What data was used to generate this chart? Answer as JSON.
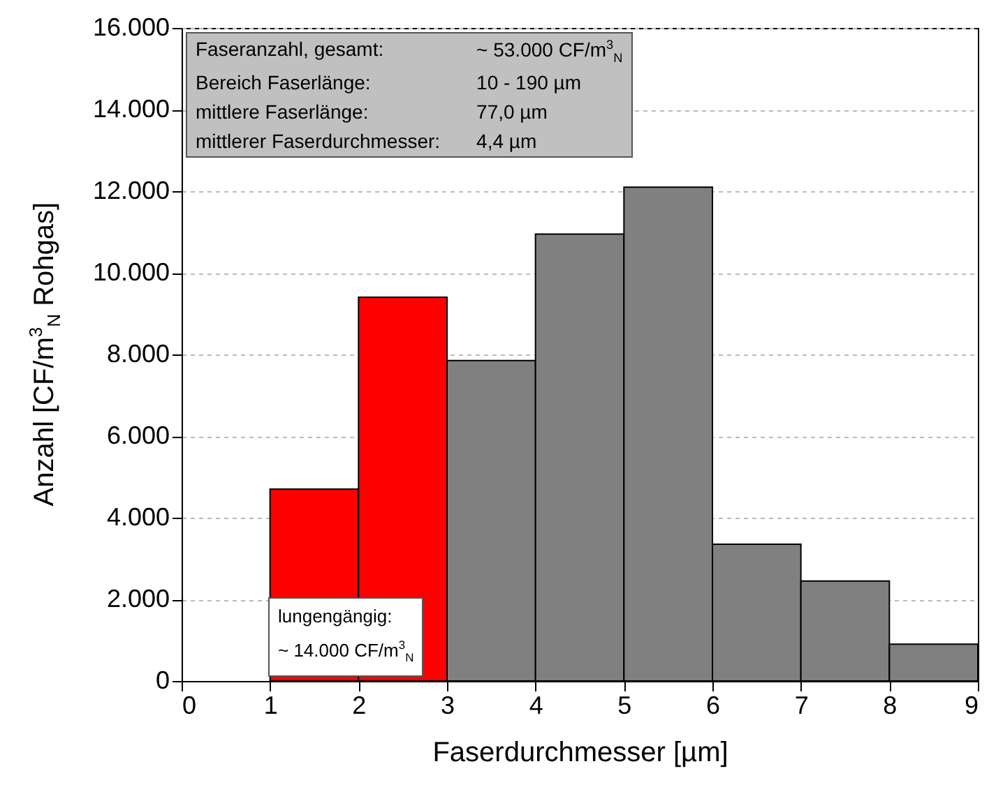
{
  "chart_data": {
    "type": "histogram",
    "xlabel": "Faserdurchmesser [µm]",
    "ylabel": "Anzahl [CF/m$^{3}$$_{N}$ Rohgas]",
    "bins": [
      1,
      2,
      3,
      4,
      5,
      6,
      7,
      8,
      9
    ],
    "values": [
      4700,
      9400,
      7850,
      10950,
      12100,
      3350,
      2450,
      900
    ],
    "colors": [
      "#ff0000",
      "#ff0000",
      "#808080",
      "#808080",
      "#808080",
      "#808080",
      "#808080",
      "#808080"
    ],
    "xlim": [
      0,
      9
    ],
    "xticks": [
      0,
      1,
      2,
      3,
      4,
      5,
      6,
      7,
      8,
      9
    ],
    "ylim": [
      0,
      16000
    ],
    "yticks": [
      0,
      {
        "value": 2000,
        "label": "2.000"
      },
      {
        "value": 4000,
        "label": "4.000"
      },
      {
        "value": 6000,
        "label": "6.000"
      },
      {
        "value": 8000,
        "label": "8.000"
      },
      {
        "value": 10000,
        "label": "10.000"
      },
      {
        "value": 12000,
        "label": "12.000"
      },
      {
        "value": 14000,
        "label": "14.000"
      },
      {
        "value": 16000,
        "label": "16.000"
      }
    ],
    "grid": "y",
    "annotations": [
      "Faseranzahl, gesamt:",
      "~ 53.000 CF/m$^{3}$$_{N}$",
      "Bereich Faserlänge:",
      "10 - 190 µm",
      "mittlere Faserlänge:",
      "77,0 µm",
      "mittlerer Faserdurchmesser:",
      "4,4 µm",
      "lungengängig:",
      "~ 14.000 CF/m$^{3}$$_{N}$"
    ]
  }
}
